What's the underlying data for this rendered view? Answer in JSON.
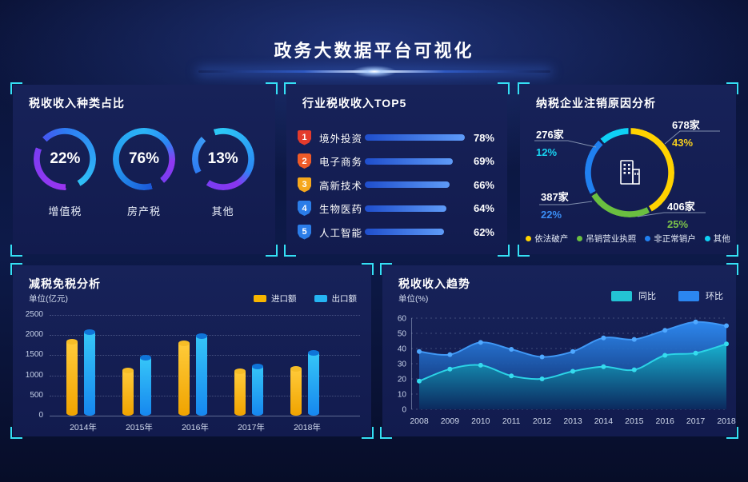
{
  "header": {
    "title": "政务大数据平台可视化"
  },
  "panels": {
    "tax_type": {
      "title": "税收收入种类占比",
      "rings": [
        {
          "value": "22%",
          "label": "增值税"
        },
        {
          "value": "76%",
          "label": "房产税"
        },
        {
          "value": "13%",
          "label": "其他"
        }
      ]
    },
    "industry_top5": {
      "title": "行业税收收入TOP5",
      "items": [
        {
          "rank": "1",
          "label": "境外投资",
          "value": "78%",
          "badge_color": "#e43b2c"
        },
        {
          "rank": "2",
          "label": "电子商务",
          "value": "69%",
          "badge_color": "#ee5a28"
        },
        {
          "rank": "3",
          "label": "高新技术",
          "value": "66%",
          "badge_color": "#f5a71d"
        },
        {
          "rank": "4",
          "label": "生物医药",
          "value": "64%",
          "badge_color": "#2b7de8"
        },
        {
          "rank": "5",
          "label": "人工智能",
          "value": "62%",
          "badge_color": "#2b7de8"
        }
      ]
    },
    "cancellation": {
      "title": "纳税企业注销原因分析",
      "callouts": [
        {
          "count": "678家",
          "percent": "43%",
          "color": "#f5ce1e"
        },
        {
          "count": "276家",
          "percent": "12%",
          "color": "#18d2f0"
        },
        {
          "count": "387家",
          "percent": "22%",
          "color": "#3a8df5"
        },
        {
          "count": "406家",
          "percent": "25%",
          "color": "#7cc24a"
        }
      ],
      "legend": [
        {
          "label": "依法破产",
          "color": "#ffd200"
        },
        {
          "label": "吊销营业执照",
          "color": "#6abf40"
        },
        {
          "label": "非正常销户",
          "color": "#2080f0"
        },
        {
          "label": "其他",
          "color": "#0fd0f5"
        }
      ]
    },
    "tax_relief": {
      "title": "减税免税分析",
      "unit": "单位(亿元)"
    },
    "revenue_trend": {
      "title": "税收收入趋势",
      "unit": "单位(%)"
    }
  },
  "chart_data": [
    {
      "type": "pie",
      "subtype": "gradient-rings",
      "title": "税收收入种类占比",
      "unit": "%",
      "slices": [
        {
          "label": "增值税",
          "value": 22
        },
        {
          "label": "房产税",
          "value": 76
        },
        {
          "label": "其他",
          "value": 13
        }
      ]
    },
    {
      "type": "bar",
      "orientation": "horizontal",
      "title": "行业税收收入TOP5",
      "unit": "%",
      "categories": [
        "境外投资",
        "电子商务",
        "高新技术",
        "生物医药",
        "人工智能"
      ],
      "values": [
        78,
        69,
        66,
        64,
        62
      ]
    },
    {
      "type": "pie",
      "subtype": "donut",
      "title": "纳税企业注销原因分析",
      "unit": "家",
      "slices": [
        {
          "label": "依法破产",
          "count": 678,
          "percent": 43,
          "color": "#ffd200"
        },
        {
          "label": "吊销营业执照",
          "count": 406,
          "percent": 25,
          "color": "#6abf40"
        },
        {
          "label": "非正常销户",
          "count": 387,
          "percent": 22,
          "color": "#2080f0"
        },
        {
          "label": "其他",
          "count": 276,
          "percent": 12,
          "color": "#0fd0f5"
        }
      ]
    },
    {
      "type": "bar",
      "title": "减税免税分析",
      "ylabel": "单位(亿元)",
      "ylim": [
        0,
        2500
      ],
      "ytick_step": 500,
      "grid": "dotted",
      "legend_position": "top-right",
      "categories": [
        "2014年",
        "2015年",
        "2016年",
        "2017年",
        "2018年"
      ],
      "series": [
        {
          "name": "进口额",
          "color": "#f7b500",
          "values": [
            1830,
            1130,
            1800,
            1100,
            1170
          ]
        },
        {
          "name": "出口额",
          "color": "#25b4f2",
          "values": [
            2080,
            1430,
            1980,
            1230,
            1560
          ]
        }
      ]
    },
    {
      "type": "area",
      "title": "税收收入趋势",
      "ylabel": "单位(%)",
      "ylim": [
        0,
        60
      ],
      "ytick_step": 10,
      "grid": "dotted",
      "legend_position": "top-right",
      "x": [
        "2008",
        "2009",
        "2010",
        "2011",
        "2012",
        "2013",
        "2014",
        "2015",
        "2016",
        "2017",
        "2018"
      ],
      "series": [
        {
          "name": "同比",
          "color": "#23c3d4",
          "values": [
            18.5,
            26.5,
            29,
            22,
            20,
            25,
            28,
            26,
            35.5,
            37,
            43
          ]
        },
        {
          "name": "环比",
          "color": "#2b86f0",
          "values": [
            38,
            36,
            44,
            39.5,
            34.5,
            38,
            47,
            46,
            52,
            57.5,
            55
          ]
        }
      ]
    }
  ]
}
